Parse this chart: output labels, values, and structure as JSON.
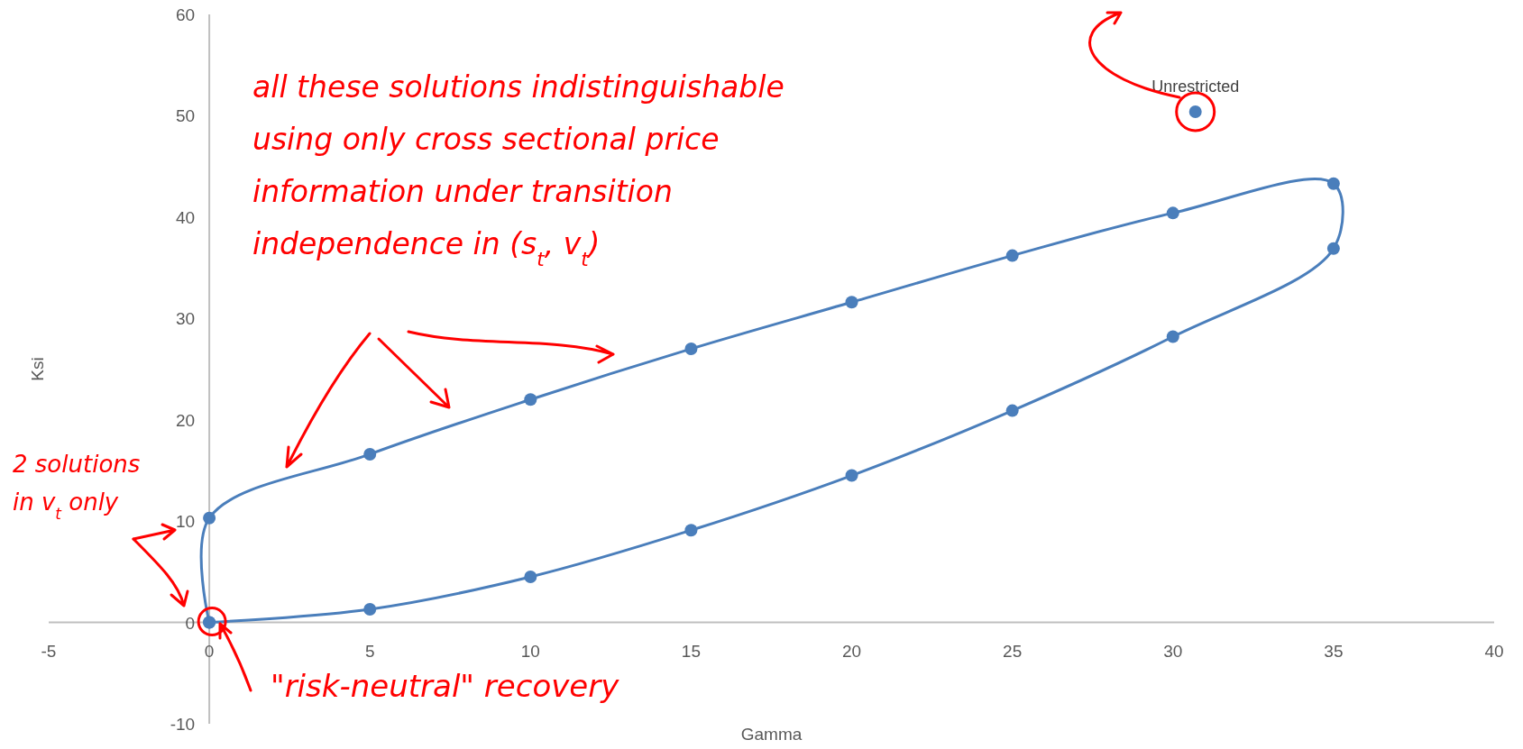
{
  "chart_data": {
    "type": "scatter",
    "xlabel": "Gamma",
    "ylabel": "Ksi",
    "xlim": [
      -5,
      40
    ],
    "xticks": [
      -5,
      0,
      5,
      10,
      15,
      20,
      25,
      30,
      35,
      40
    ],
    "ylim": [
      -10,
      60
    ],
    "yticks": [
      -10,
      0,
      10,
      20,
      30,
      40,
      50,
      60
    ],
    "marker": "circle",
    "series": [
      {
        "line_style": "solid",
        "color": "#4a7ebb",
        "x": [
          0,
          5,
          10,
          15,
          20,
          25,
          30,
          35,
          35,
          30,
          25,
          20,
          15,
          10,
          5,
          0,
          0
        ],
        "values": [
          0,
          1.3,
          4.5,
          9.1,
          14.5,
          20.9,
          28.2,
          36.9,
          43.3,
          40.4,
          36.2,
          31.6,
          27.0,
          22.0,
          16.6,
          10.3,
          0
        ]
      },
      {
        "color": "#4a7ebb",
        "x": [
          30.7
        ],
        "values": [
          50.4
        ]
      }
    ],
    "annotations": [
      {
        "text": "Unrestricted",
        "x": 30.7,
        "y": 50.4
      },
      "all these solutions indistinguishable using only cross sectional price information under transition independence in (s$_{t}$, v$_{t}$)",
      "2 solutions in v$_{t}$ only",
      "\"risk-neutral\" recovery"
    ]
  }
}
